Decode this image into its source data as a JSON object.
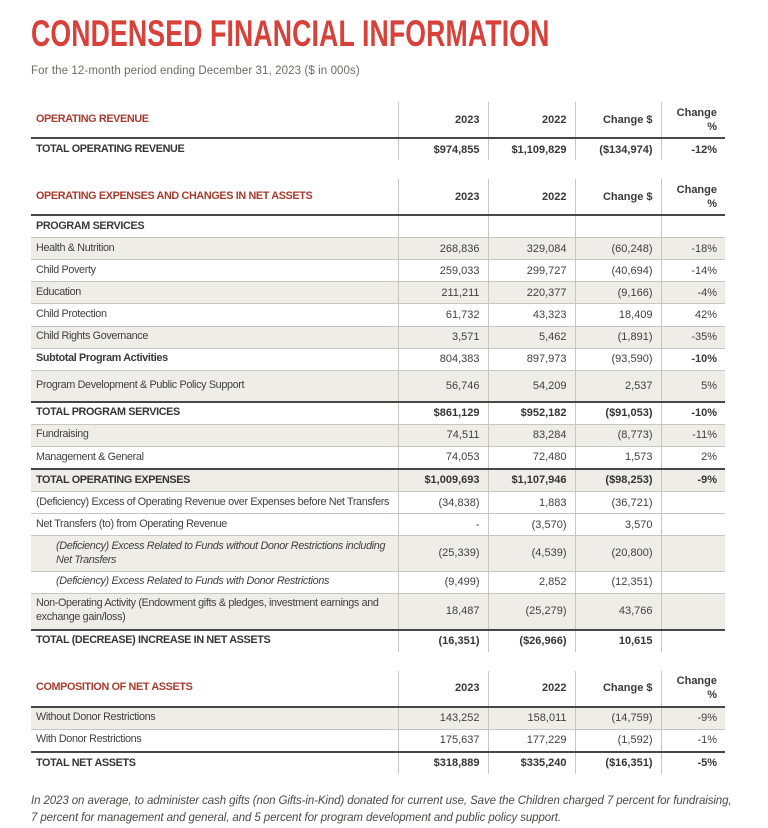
{
  "page": {
    "title": "CONDENSED FINANCIAL INFORMATION",
    "subtitle": "For the 12-month period ending December 31, 2023 ($ in 000s)",
    "footnote": "In 2023 on average, to administer cash gifts (non Gifts-in-Kind) donated for current use, Save the Children charged 7 percent for fundraising, 7 percent for management and general, and 5 percent for program development and public policy support."
  },
  "colors": {
    "title_red": "#d8413a",
    "section_red": "#a63c2f",
    "row_shade": "#efede8",
    "dark_rule": "#474747",
    "light_rule": "#c9c6c1",
    "body_text": "#414042"
  },
  "columns": [
    "2023",
    "2022",
    "Change $",
    "Change %"
  ],
  "tables": [
    {
      "section": "OPERATING REVENUE",
      "rows": [
        {
          "label": "TOTAL OPERATING REVENUE",
          "style": "total",
          "values": [
            "$974,855",
            "$1,109,829",
            "($134,974)",
            "-12%"
          ]
        }
      ]
    },
    {
      "section": "OPERATING EXPENSES AND CHANGES IN NET ASSETS",
      "rows": [
        {
          "label": "PROGRAM SERVICES",
          "style": "group",
          "values": [
            "",
            "",
            "",
            ""
          ]
        },
        {
          "label": "Health & Nutrition",
          "shaded": true,
          "values": [
            "268,836",
            "329,084",
            "(60,248)",
            "-18%"
          ]
        },
        {
          "label": "Child Poverty",
          "values": [
            "259,033",
            "299,727",
            "(40,694)",
            "-14%"
          ]
        },
        {
          "label": "Education",
          "shaded": true,
          "values": [
            "211,211",
            "220,377",
            "(9,166)",
            "-4%"
          ]
        },
        {
          "label": "Child Protection",
          "values": [
            "61,732",
            "43,323",
            "18,409",
            "42%"
          ]
        },
        {
          "label": "Child Rights Governance",
          "shaded": true,
          "values": [
            "3,571",
            "5,462",
            "(1,891)",
            "-35%"
          ]
        },
        {
          "label": "Subtotal Program Activities",
          "style": "subtotal",
          "values": [
            "804,383",
            "897,973",
            "(93,590)",
            "-10%"
          ]
        },
        {
          "label": "Program Development & Public Policy Support",
          "shaded": true,
          "tall": true,
          "values": [
            "56,746",
            "54,209",
            "2,537",
            "5%"
          ]
        },
        {
          "label": "TOTAL PROGRAM SERVICES",
          "style": "total",
          "values": [
            "$861,129",
            "$952,182",
            "($91,053)",
            "-10%"
          ]
        },
        {
          "label": "Fundraising",
          "shaded": true,
          "values": [
            "74,511",
            "83,284",
            "(8,773)",
            "-11%"
          ]
        },
        {
          "label": "Management & General",
          "values": [
            "74,053",
            "72,480",
            "1,573",
            "2%"
          ]
        },
        {
          "label": "TOTAL OPERATING EXPENSES",
          "style": "total",
          "shaded": true,
          "values": [
            "$1,009,693",
            "$1,107,946",
            "($98,253)",
            "-9%"
          ]
        },
        {
          "label": "(Deficiency) Excess of Operating Revenue over Expenses before Net Transfers",
          "values": [
            "(34,838)",
            "1,883",
            "(36,721)",
            ""
          ]
        },
        {
          "label": "Net Transfers (to) from Operating Revenue",
          "values": [
            "-",
            "(3,570)",
            "3,570",
            ""
          ]
        },
        {
          "label": "(Deficiency) Excess Related to Funds without Donor Restrictions including Net Transfers",
          "italic": true,
          "indent": true,
          "shaded": true,
          "values": [
            "(25,339)",
            "(4,539)",
            "(20,800)",
            ""
          ]
        },
        {
          "label": "(Deficiency) Excess Related to Funds with Donor Restrictions",
          "italic": true,
          "indent": true,
          "values": [
            "(9,499)",
            "2,852",
            "(12,351)",
            ""
          ]
        },
        {
          "label": "Non-Operating Activity (Endowment gifts & pledges, investment earnings and exchange gain/loss)",
          "shaded": true,
          "values": [
            "18,487",
            "(25,279)",
            "43,766",
            ""
          ]
        },
        {
          "label": "TOTAL (DECREASE) INCREASE IN NET ASSETS",
          "style": "total",
          "values": [
            "(16,351)",
            "($26,966)",
            "10,615",
            ""
          ]
        }
      ]
    },
    {
      "section": "COMPOSITION OF NET ASSETS",
      "rows": [
        {
          "label": "Without Donor Restrictions",
          "shaded": true,
          "values": [
            "143,252",
            "158,011",
            "(14,759)",
            "-9%"
          ]
        },
        {
          "label": "With Donor Restrictions",
          "values": [
            "175,637",
            "177,229",
            "(1,592)",
            "-1%"
          ]
        },
        {
          "label": "TOTAL NET ASSETS",
          "style": "total",
          "values": [
            "$318,889",
            "$335,240",
            "($16,351)",
            "-5%"
          ]
        }
      ]
    }
  ]
}
